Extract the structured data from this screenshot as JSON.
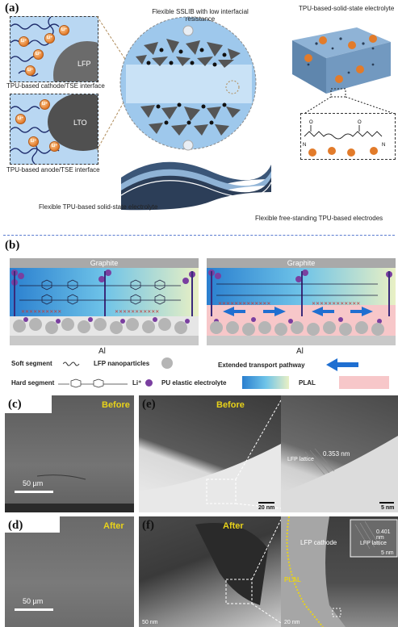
{
  "panels": {
    "a": "(a)",
    "b": "(b)",
    "c": "(c)",
    "d": "(d)",
    "e": "(e)",
    "f": "(f)"
  },
  "panel_a": {
    "sslib_title": "Flexible SSLIB with low interfacial resistance",
    "tse_title": "TPU-based-solid-state electrolyte",
    "cathode_particle": "LFP",
    "anode_particle": "LTO",
    "cathode_interface": "TPU-based cathode/TSE interface",
    "anode_interface": "TPU-based anode/TSE interface",
    "flexible_electrolyte": "Flexible TPU-based solid-state electrolyte",
    "flexible_electrodes": "Flexible free-standing TPU-based electrodes",
    "li_symbol": "Li⁺"
  },
  "panel_b": {
    "top_left": "Graphite",
    "top_right": "Graphite",
    "bottom_left": "Al",
    "bottom_right": "Al",
    "legend": {
      "soft_segment": "Soft segment",
      "lfp_nanoparticles": "LFP nanoparticles",
      "extended_pathway": "Extended transport pathway",
      "hard_segment": "Hard segment",
      "li_plus": "Li⁺",
      "pu_electrolyte": "PU elastic electrolyte",
      "plal": "PLAL"
    }
  },
  "panel_c": {
    "tag": "Before",
    "scale": "50 µm"
  },
  "panel_d": {
    "tag": "After",
    "scale": "50 µm"
  },
  "panel_e": {
    "tag": "Before",
    "scale_left": "20 nm",
    "scale_right": "5 nm",
    "lattice_label": "LFP lattice",
    "lattice_value": "0.353 nm"
  },
  "panel_f": {
    "tag": "After",
    "scale_left": "50 nm",
    "scale_mid": "20 nm",
    "scale_right": "5 nm",
    "cathode": "LFP cathode",
    "plal": "PLAL",
    "lattice_label": "LFP lattice",
    "lattice_value": "0.401 nm"
  },
  "colors": {
    "li": "#e27b2a",
    "purple": "#7a3fa0",
    "blue_arrow": "#1f6fd1",
    "plal_pink": "#f7c7c9",
    "yellow": "#e8d21a"
  }
}
